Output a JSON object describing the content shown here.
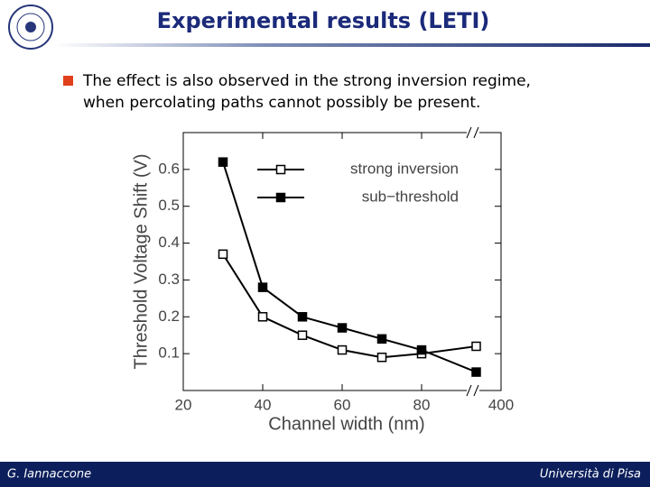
{
  "header": {
    "title": "Experimental results (LETI)"
  },
  "bullet": [
    "The effect is also observed in the strong inversion regime,",
    "when percolating paths cannot possibly be present."
  ],
  "chart_data": {
    "type": "line",
    "x_label": "Channel width (nm)",
    "y_label": "Threshold Voltage Shift (V)",
    "x": [
      30,
      40,
      50,
      60,
      70,
      80,
      300
    ],
    "xlim": [
      20,
      400
    ],
    "xticks": [
      20,
      40,
      60,
      80,
      400
    ],
    "axis_break": true,
    "ylim": [
      0,
      0.7
    ],
    "yticks": [
      0.1,
      0.2,
      0.3,
      0.4,
      0.5,
      0.6
    ],
    "legend": "upper right",
    "series": [
      {
        "name": "strong inversion",
        "color": "#000000",
        "marker": "open-square",
        "values": [
          0.37,
          0.2,
          0.15,
          0.11,
          0.09,
          0.1,
          0.12
        ]
      },
      {
        "name": "sub−threshold",
        "color": "#000000",
        "marker": "filled-square",
        "values": [
          0.62,
          0.28,
          0.2,
          0.17,
          0.14,
          0.11,
          0.05
        ]
      }
    ]
  },
  "footer": {
    "left": "G. Iannaccone",
    "right": "Università di Pisa"
  }
}
